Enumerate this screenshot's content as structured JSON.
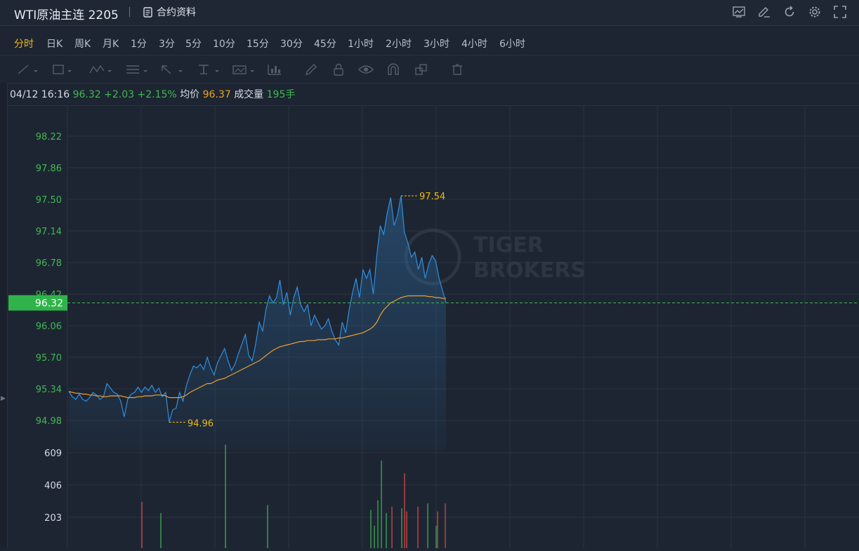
{
  "header": {
    "title": "WTI原油主连 2205",
    "contract_label": "合约资料"
  },
  "periods": [
    "分时",
    "日K",
    "周K",
    "月K",
    "1分",
    "3分",
    "5分",
    "10分",
    "15分",
    "30分",
    "45分",
    "1小时",
    "2小时",
    "3小时",
    "4小时",
    "6小时"
  ],
  "active_period": "分时",
  "info": {
    "datetime": "04/12 16:16",
    "price": "96.32",
    "change": "+2.03",
    "change_pct": "+2.15%",
    "avg_label": "均价",
    "avg_value": "96.37",
    "volume_label": "成交量",
    "volume_value": "195手"
  },
  "watermark": {
    "line1": "TIGER",
    "line2": "BROKERS"
  },
  "colors": {
    "up": "#3fb950",
    "down": "#e5484d",
    "line": "#2f8fe0",
    "avg": "#f0a030",
    "accent": "#f0b90b"
  },
  "chart_data": {
    "type": "line",
    "price_axis_ticks": [
      "98.22",
      "97.86",
      "97.50",
      "97.14",
      "96.78",
      "96.42",
      "96.06",
      "95.70",
      "95.34",
      "94.98"
    ],
    "volume_axis_ticks": [
      "609",
      "406",
      "203"
    ],
    "current_price": "96.32",
    "high_label": "97.54",
    "low_label": "94.96",
    "high": 97.54,
    "low": 94.96,
    "ylim": [
      94.8,
      98.5
    ],
    "price_series": [
      95.31,
      95.25,
      95.22,
      95.28,
      95.22,
      95.2,
      95.24,
      95.3,
      95.27,
      95.22,
      95.25,
      95.4,
      95.35,
      95.3,
      95.28,
      95.2,
      95.02,
      95.22,
      95.28,
      95.3,
      95.36,
      95.3,
      95.36,
      95.32,
      95.38,
      95.3,
      95.35,
      95.25,
      95.3,
      94.96,
      95.1,
      95.12,
      95.3,
      95.2,
      95.38,
      95.5,
      95.6,
      95.58,
      95.62,
      95.56,
      95.7,
      95.58,
      95.5,
      95.64,
      95.72,
      95.8,
      95.66,
      95.55,
      95.62,
      95.74,
      95.85,
      95.96,
      95.72,
      95.66,
      95.85,
      96.1,
      96.0,
      96.25,
      96.4,
      96.32,
      96.38,
      96.58,
      96.3,
      96.44,
      96.18,
      96.38,
      96.5,
      96.3,
      96.22,
      96.3,
      96.06,
      96.18,
      96.1,
      96.02,
      96.06,
      96.14,
      96.0,
      95.9,
      95.84,
      96.1,
      95.98,
      96.24,
      96.44,
      96.6,
      96.38,
      96.7,
      96.6,
      96.7,
      96.42,
      96.86,
      97.2,
      97.1,
      97.34,
      97.52,
      97.2,
      97.32,
      97.54,
      97.12,
      97.0,
      96.84,
      96.9,
      96.7,
      96.84,
      96.6,
      96.76,
      96.86,
      96.8,
      96.6,
      96.46,
      96.32
    ],
    "avg_series": [
      95.31,
      95.3,
      95.29,
      95.29,
      95.28,
      95.28,
      95.27,
      95.27,
      95.26,
      95.26,
      95.25,
      95.25,
      95.26,
      95.26,
      95.26,
      95.26,
      95.25,
      95.24,
      95.24,
      95.24,
      95.25,
      95.25,
      95.26,
      95.26,
      95.26,
      95.27,
      95.27,
      95.27,
      95.26,
      95.24,
      95.24,
      95.24,
      95.24,
      95.25,
      95.27,
      95.3,
      95.32,
      95.34,
      95.36,
      95.38,
      95.4,
      95.4,
      95.42,
      95.44,
      95.45,
      95.46,
      95.48,
      95.5,
      95.52,
      95.54,
      95.56,
      95.58,
      95.6,
      95.62,
      95.64,
      95.66,
      95.69,
      95.72,
      95.75,
      95.78,
      95.8,
      95.82,
      95.83,
      95.84,
      95.85,
      95.86,
      95.87,
      95.88,
      95.88,
      95.89,
      95.89,
      95.89,
      95.9,
      95.9,
      95.9,
      95.91,
      95.91,
      95.91,
      95.92,
      95.92,
      95.93,
      95.94,
      95.95,
      95.96,
      95.97,
      95.98,
      96.0,
      96.02,
      96.05,
      96.1,
      96.18,
      96.24,
      96.28,
      96.32,
      96.34,
      96.36,
      96.38,
      96.39,
      96.4,
      96.4,
      96.4,
      96.4,
      96.4,
      96.4,
      96.39,
      96.39,
      96.38,
      96.38,
      96.37,
      96.37
    ],
    "volume_series": [
      {
        "v": 300,
        "up": false
      },
      {
        "v": 230,
        "up": true
      },
      {
        "v": 660,
        "up": true
      },
      {
        "v": 280,
        "up": true
      },
      {
        "v": 250,
        "up": true
      },
      {
        "v": 150,
        "up": true
      },
      {
        "v": 310,
        "up": true
      },
      {
        "v": 560,
        "up": true
      },
      {
        "v": 230,
        "up": true
      },
      {
        "v": 270,
        "up": false
      },
      {
        "v": 480,
        "up": false
      },
      {
        "v": 260,
        "up": true
      },
      {
        "v": 240,
        "up": false
      },
      {
        "v": 270,
        "up": false
      },
      {
        "v": 290,
        "up": true
      },
      {
        "v": 240,
        "up": false
      },
      {
        "v": 290,
        "up": false
      },
      {
        "v": 150,
        "up": true
      }
    ]
  }
}
